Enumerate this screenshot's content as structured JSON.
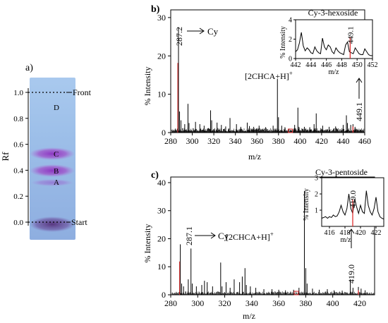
{
  "tlc": {
    "panel_label": "a)",
    "axis_label": "Rf",
    "ticks": [
      "1.0",
      "0.8",
      "0.6",
      "0.4",
      "0.2",
      "0.0"
    ],
    "front_label": "Front",
    "start_label": "Start",
    "spots": [
      {
        "label": "D",
        "rf": 0.88
      },
      {
        "label": "C",
        "rf": 0.53
      },
      {
        "label": "B",
        "rf": 0.4
      },
      {
        "label": "A",
        "rf": 0.32
      }
    ]
  },
  "chart_data": [
    {
      "type": "line",
      "panel_label": "b)",
      "xlabel": "m/z",
      "ylabel": "% Intensity",
      "xlim": [
        280,
        460
      ],
      "ylim": [
        0,
        32
      ],
      "xticks": [
        280,
        300,
        320,
        340,
        360,
        380,
        400,
        420,
        440,
        460
      ],
      "yticks": [
        0,
        10,
        20,
        30
      ],
      "peaks": [
        {
          "x": 287.2,
          "y": 27.5
        },
        {
          "x": 288.2,
          "y": 5.5
        },
        {
          "x": 289.5,
          "y": 3.2
        },
        {
          "x": 293,
          "y": 2.2
        },
        {
          "x": 296,
          "y": 7.5
        },
        {
          "x": 297,
          "y": 2.5
        },
        {
          "x": 303,
          "y": 2.8
        },
        {
          "x": 307,
          "y": 2.2
        },
        {
          "x": 311,
          "y": 1.8
        },
        {
          "x": 317,
          "y": 5.8
        },
        {
          "x": 318,
          "y": 3.2
        },
        {
          "x": 323,
          "y": 2.6
        },
        {
          "x": 327,
          "y": 2.0
        },
        {
          "x": 331,
          "y": 1.6
        },
        {
          "x": 335,
          "y": 3.8
        },
        {
          "x": 341,
          "y": 2.2
        },
        {
          "x": 345,
          "y": 1.5
        },
        {
          "x": 351,
          "y": 2.6
        },
        {
          "x": 353,
          "y": 1.7
        },
        {
          "x": 357,
          "y": 1.5
        },
        {
          "x": 362,
          "y": 1.8
        },
        {
          "x": 368,
          "y": 1.4
        },
        {
          "x": 375,
          "y": 1.8
        },
        {
          "x": 379,
          "y": 14.0
        },
        {
          "x": 380,
          "y": 4.0
        },
        {
          "x": 383,
          "y": 1.8
        },
        {
          "x": 386,
          "y": 1.4
        },
        {
          "x": 395,
          "y": 2.0
        },
        {
          "x": 398,
          "y": 6.5
        },
        {
          "x": 399,
          "y": 1.5
        },
        {
          "x": 404,
          "y": 1.5
        },
        {
          "x": 409,
          "y": 1.4
        },
        {
          "x": 413,
          "y": 2.2
        },
        {
          "x": 415,
          "y": 5.0
        },
        {
          "x": 421,
          "y": 1.8
        },
        {
          "x": 427,
          "y": 1.5
        },
        {
          "x": 433,
          "y": 1.6
        },
        {
          "x": 440,
          "y": 2.0
        },
        {
          "x": 443,
          "y": 4.5
        },
        {
          "x": 444,
          "y": 2.5
        },
        {
          "x": 447,
          "y": 2.0
        },
        {
          "x": 449.1,
          "y": 2.2
        },
        {
          "x": 451,
          "y": 1.5
        }
      ],
      "marker_x": 391,
      "annotations": {
        "main_peak": "287.2",
        "main_arrow": "Cy",
        "matrix": "[2CHCA+H]",
        "matrix_sup": "+",
        "target_peak": "449.1"
      },
      "inset": {
        "title": "Cy-3-hexoside",
        "xlabel": "m/z",
        "ylabel": "% Intensity",
        "xlim": [
          442,
          452
        ],
        "ylim": [
          0,
          4
        ],
        "xticks": [
          442,
          444,
          446,
          448,
          450,
          452
        ],
        "yticks": [
          0,
          2,
          4
        ],
        "highlight": {
          "x": 449.1,
          "label": "449.1"
        },
        "y": [
          0.7,
          0.9,
          1.6,
          2.7,
          1.3,
          0.8,
          1.1,
          0.9,
          0.6,
          0.5,
          1.2,
          0.8,
          0.6,
          0.5,
          2.1,
          1.2,
          0.9,
          1.4,
          1.2,
          0.7,
          0.5,
          1.1,
          0.8,
          0.6,
          0.5,
          0.4,
          1.4,
          1.7,
          0.7,
          0.6,
          0.5,
          1.1,
          0.8,
          0.5,
          0.4,
          0.4,
          1.0,
          0.7,
          0.4,
          0.3,
          0.3
        ]
      }
    },
    {
      "type": "line",
      "panel_label": "c)",
      "xlabel": "m/z",
      "ylabel": "% Intensity",
      "xlim": [
        280,
        431
      ],
      "ylim": [
        0,
        42
      ],
      "xticks": [
        280,
        300,
        320,
        340,
        360,
        380,
        400,
        420
      ],
      "yticks": [
        0,
        10,
        20,
        30,
        40
      ],
      "peaks": [
        {
          "x": 287.1,
          "y": 18.0
        },
        {
          "x": 288.1,
          "y": 4.0
        },
        {
          "x": 289.5,
          "y": 3.0
        },
        {
          "x": 293,
          "y": 5.5
        },
        {
          "x": 295,
          "y": 16.5
        },
        {
          "x": 296,
          "y": 4.0
        },
        {
          "x": 299,
          "y": 3.0
        },
        {
          "x": 303,
          "y": 3.5
        },
        {
          "x": 305,
          "y": 5.0
        },
        {
          "x": 307,
          "y": 4.5
        },
        {
          "x": 311,
          "y": 3.0
        },
        {
          "x": 317,
          "y": 11.5
        },
        {
          "x": 318,
          "y": 3.0
        },
        {
          "x": 321,
          "y": 4.5
        },
        {
          "x": 324,
          "y": 2.5
        },
        {
          "x": 327,
          "y": 5.5
        },
        {
          "x": 331,
          "y": 4.5
        },
        {
          "x": 333,
          "y": 6.5
        },
        {
          "x": 335,
          "y": 9.5
        },
        {
          "x": 336,
          "y": 3.5
        },
        {
          "x": 339,
          "y": 3.0
        },
        {
          "x": 343,
          "y": 2.5
        },
        {
          "x": 349,
          "y": 2.0
        },
        {
          "x": 355,
          "y": 2.0
        },
        {
          "x": 360,
          "y": 1.8
        },
        {
          "x": 365,
          "y": 1.6
        },
        {
          "x": 371,
          "y": 1.8
        },
        {
          "x": 375,
          "y": 2.5
        },
        {
          "x": 379,
          "y": 37.0
        },
        {
          "x": 380,
          "y": 9.5
        },
        {
          "x": 381,
          "y": 4.0
        },
        {
          "x": 385,
          "y": 2.2
        },
        {
          "x": 390,
          "y": 1.8
        },
        {
          "x": 396,
          "y": 2.0
        },
        {
          "x": 401,
          "y": 1.6
        },
        {
          "x": 407,
          "y": 1.5
        },
        {
          "x": 413,
          "y": 5.5
        },
        {
          "x": 415,
          "y": 2.5
        },
        {
          "x": 419.0,
          "y": 2.8
        },
        {
          "x": 421,
          "y": 2.2
        },
        {
          "x": 424,
          "y": 1.6
        }
      ],
      "marker_x": 373,
      "annotations": {
        "main_peak": "287.1",
        "main_arrow": "Cy",
        "matrix": "[2CHCA+H]",
        "matrix_sup": "+",
        "target_peak": "419.0"
      },
      "inset": {
        "title": "Cy-3-pentoside",
        "xlabel": "m/z",
        "ylabel": "% Intensity",
        "xlim": [
          415,
          423
        ],
        "ylim": [
          0,
          3
        ],
        "xticks": [
          416,
          418,
          420,
          422
        ],
        "yticks": [
          1,
          2,
          3
        ],
        "highlight": {
          "x": 419.0,
          "label": "419.0"
        },
        "y": [
          0.5,
          0.55,
          0.6,
          0.5,
          0.6,
          0.55,
          0.7,
          0.6,
          0.65,
          0.9,
          1.3,
          0.9,
          0.7,
          1.1,
          2.0,
          1.1,
          0.8,
          1.7,
          1.2,
          0.8,
          1.3,
          0.9,
          0.8,
          2.2,
          1.3,
          0.9,
          0.7,
          1.1,
          1.8,
          0.9,
          0.6,
          0.5,
          0.45
        ]
      }
    }
  ]
}
